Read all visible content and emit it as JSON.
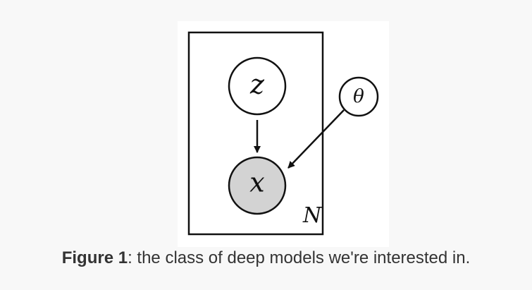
{
  "diagram": {
    "nodes": [
      {
        "id": "z",
        "label": "z",
        "observed": false
      },
      {
        "id": "x",
        "label": "x",
        "observed": true
      },
      {
        "id": "theta",
        "label": "θ",
        "observed": false
      }
    ],
    "edges": [
      {
        "from": "z",
        "to": "x"
      },
      {
        "from": "theta",
        "to": "x"
      }
    ],
    "plate": {
      "label": "N",
      "contains": [
        "z",
        "x"
      ]
    },
    "colors": {
      "stroke": "#111111",
      "observed_fill": "#d3d3d3",
      "latent_fill": "#ffffff",
      "panel_background": "#ffffff",
      "page_background": "#f8f8f8",
      "caption_text": "#333333"
    }
  },
  "caption": {
    "label": "Figure 1",
    "text": ": the class of deep models we're interested in."
  }
}
